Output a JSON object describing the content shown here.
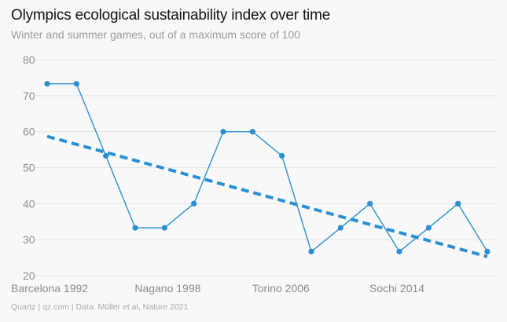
{
  "title": "Olympics ecological sustainability index over time",
  "subtitle": "Winter and summer games, out of a maximum score of 100",
  "source": "Quartz | qz.com | Data: Müller et al, Nature 2021",
  "colors": {
    "series": "#2a8fd0",
    "grid": "#e4e4e4",
    "tick": "#8c8c8c"
  },
  "chart_data": {
    "type": "line",
    "title": "Olympics ecological sustainability index over time",
    "subtitle": "Winter and summer games, out of a maximum score of 100",
    "xlabel": "",
    "ylabel": "",
    "ylim": [
      20,
      80
    ],
    "yticks": [
      20,
      30,
      40,
      50,
      60,
      70,
      80
    ],
    "x_tick_labels": [
      {
        "index": 0,
        "label": "Barcelona 1992"
      },
      {
        "index": 4,
        "label": "Nagano 1998"
      },
      {
        "index": 8,
        "label": "Torino 2006"
      },
      {
        "index": 12,
        "label": "Sochi 2014"
      }
    ],
    "grid": true,
    "series": [
      {
        "name": "Sustainability index",
        "style": "solid line with markers",
        "values": [
          73.3,
          73.3,
          53.3,
          33.3,
          33.3,
          40,
          60,
          60,
          53.3,
          26.7,
          33.3,
          40,
          26.7,
          33.3,
          40,
          26.7
        ]
      },
      {
        "name": "Trend",
        "style": "dashed",
        "start": [
          0,
          58.7
        ],
        "end": [
          15,
          25.3
        ]
      }
    ]
  }
}
